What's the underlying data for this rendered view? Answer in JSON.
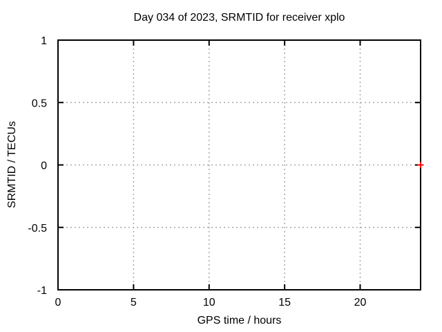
{
  "chart_data": {
    "type": "scatter",
    "title": "Day 034 of 2023, SRMTID for receiver xplo",
    "xlabel": "GPS time / hours",
    "ylabel": "SRMTID / TECUs",
    "xlim": [
      0,
      24
    ],
    "ylim": [
      -1,
      1
    ],
    "xticks": [
      0,
      5,
      10,
      15,
      20
    ],
    "yticks": [
      -1,
      -0.5,
      0,
      0.5,
      1
    ],
    "grid": true,
    "grid_style": "dotted",
    "legend": "none",
    "tick_style": "inward-mirrored",
    "series": [
      {
        "name": "SRMTID",
        "marker": "plus",
        "color": "#ff0000",
        "points": [
          {
            "x": 24,
            "y": 0
          }
        ]
      }
    ],
    "colors": {
      "background": "#ffffff",
      "axis": "#000000",
      "grid": "#a8a8a8",
      "text": "#000000",
      "marker": "#ff0000"
    }
  }
}
